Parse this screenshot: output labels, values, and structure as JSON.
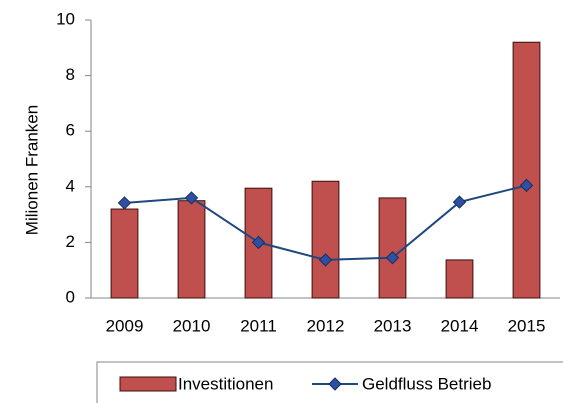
{
  "chart_data": {
    "type": "bar",
    "y_label": "Milionen Franken",
    "categories": [
      "2009",
      "2010",
      "2011",
      "2012",
      "2013",
      "2014",
      "2015"
    ],
    "series": [
      {
        "name": "Investitionen",
        "type": "bar",
        "color": "#c0504d",
        "values": [
          3.2,
          3.5,
          3.95,
          4.2,
          3.6,
          1.37,
          9.2
        ]
      },
      {
        "name": "Geldfluss Betrieb",
        "type": "line",
        "color": "#1f497d",
        "values": [
          3.42,
          3.6,
          2.0,
          1.37,
          1.45,
          3.45,
          4.05
        ]
      }
    ],
    "ylim": [
      0,
      10
    ],
    "yticks": [
      0,
      2,
      4,
      6,
      8,
      10
    ],
    "grid": false,
    "legend": "bottom"
  }
}
